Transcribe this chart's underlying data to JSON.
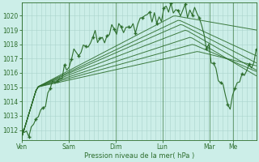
{
  "bg_color": "#cceee8",
  "grid_color": "#aad4cc",
  "line_color": "#2d6e2d",
  "marker_color": "#2d6e2d",
  "ylabel_ticks": [
    1012,
    1013,
    1014,
    1015,
    1016,
    1017,
    1018,
    1019,
    1020
  ],
  "ylim": [
    1011.3,
    1020.9
  ],
  "xlabel": "Pression niveau de la mer( hPa )",
  "xtick_labels": [
    "Ven",
    "Sam",
    "Dim",
    "Lun",
    "Mar",
    "Me"
  ],
  "xtick_positions": [
    0,
    0.2,
    0.4,
    0.6,
    0.8,
    0.9
  ],
  "total_points": 100
}
